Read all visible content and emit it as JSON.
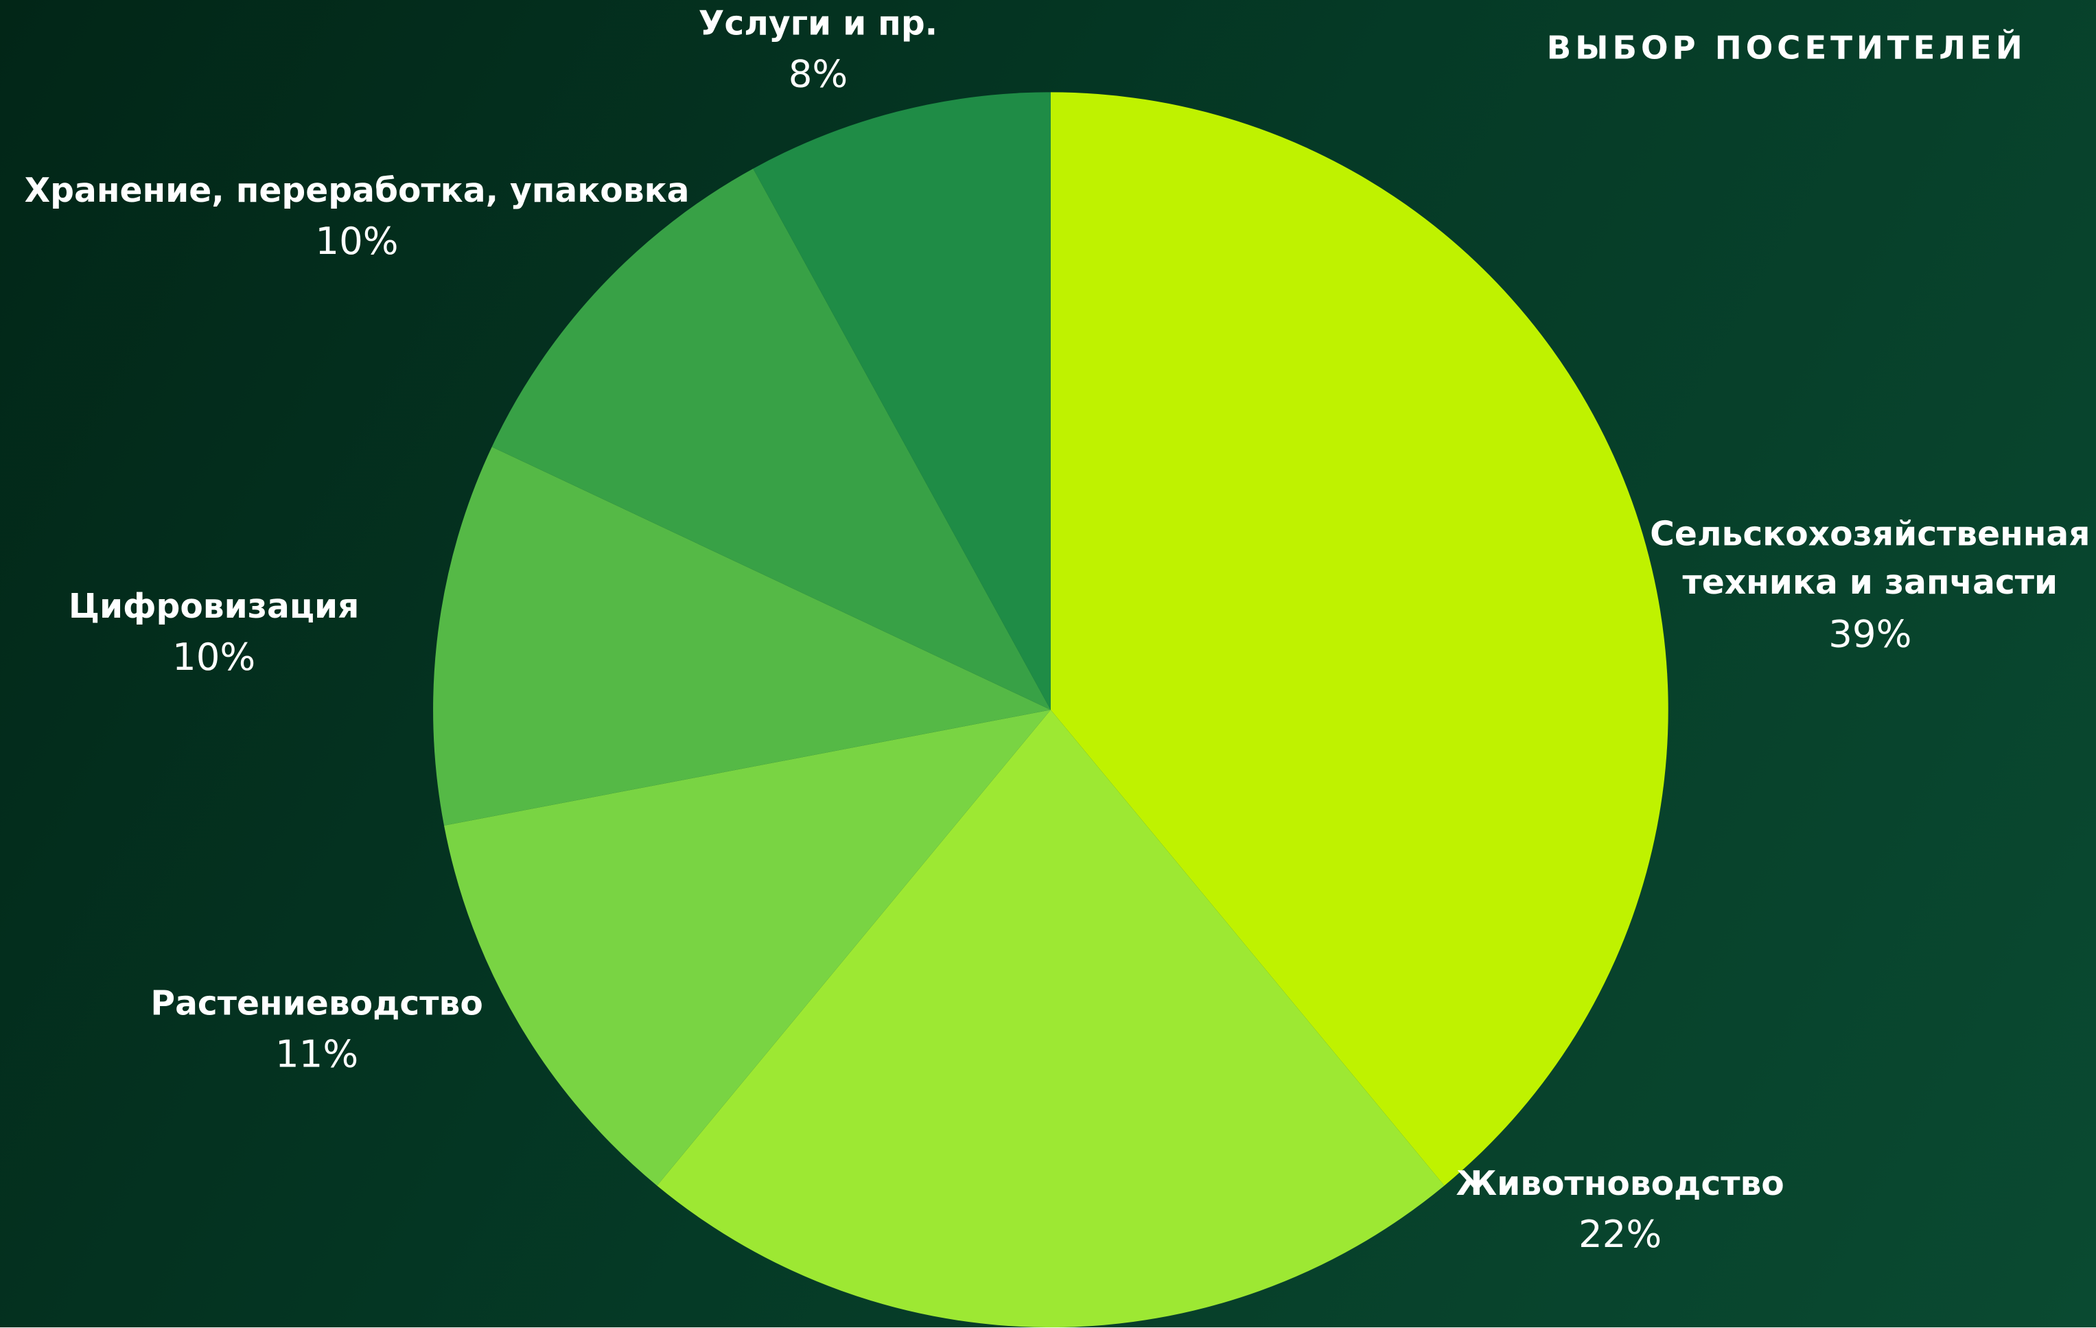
{
  "chart_data": {
    "type": "pie",
    "title": "ВЫБОР ПОСЕТИТЕЛЕЙ",
    "categories": [
      "Сельскохозяйственная техника и запчасти",
      "Животноводство",
      "Растениеводство",
      "Цифровизация",
      "Хранение, переработка, упаковка",
      "Услуги и пр."
    ],
    "values": [
      39,
      22,
      11,
      10,
      10,
      8
    ],
    "value_labels": [
      "39%",
      "22%",
      "11%",
      "10%",
      "10%",
      "8%"
    ],
    "colors": [
      "#bff200",
      "#9de833",
      "#79d443",
      "#55b946",
      "#38a146",
      "#1f8c46"
    ]
  }
}
